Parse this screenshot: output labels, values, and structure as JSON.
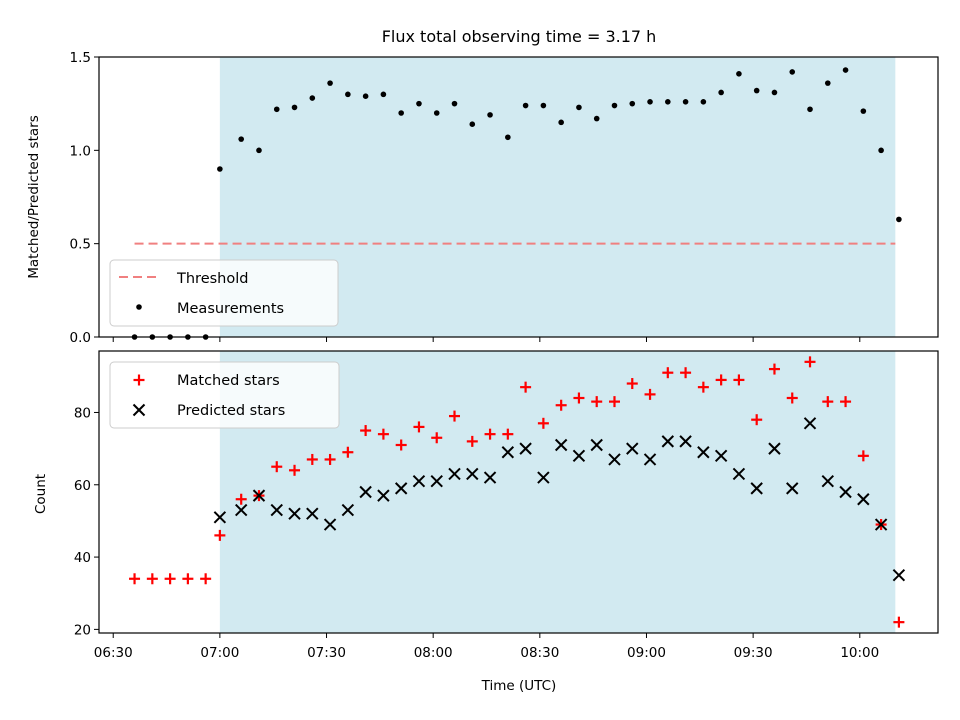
{
  "colors": {
    "background": "#ffffff",
    "shade": "#add8e6",
    "threshold": "#f08080",
    "measurement": "#000000",
    "matched": "#ff0000",
    "predicted": "#000000",
    "axis": "#000000"
  },
  "chart_data": [
    {
      "type": "scatter",
      "title": "Flux total observing time = 3.17 h",
      "xlabel": "",
      "ylabel": "Matched/Predicted stars",
      "xlim": [
        "06:26",
        "10:22"
      ],
      "ylim": [
        0,
        1.5
      ],
      "yticks": [
        0.0,
        0.5,
        1.0,
        1.5
      ],
      "ytick_labels": [
        "0.0",
        "0.5",
        "1.0",
        "1.5"
      ],
      "grid": false,
      "legend_position": "lower-left",
      "shaded_region": [
        "07:00",
        "10:10"
      ],
      "threshold": {
        "name": "Threshold",
        "value": 0.5,
        "x": [
          "06:36",
          "10:10"
        ],
        "style": "dashed"
      },
      "series": [
        {
          "name": "Measurements",
          "x": [
            "06:36",
            "06:41",
            "06:46",
            "06:51",
            "06:56",
            "07:00",
            "07:06",
            "07:11",
            "07:16",
            "07:21",
            "07:26",
            "07:31",
            "07:36",
            "07:41",
            "07:46",
            "07:51",
            "07:56",
            "08:01",
            "08:06",
            "08:11",
            "08:16",
            "08:21",
            "08:26",
            "08:31",
            "08:36",
            "08:41",
            "08:46",
            "08:51",
            "08:56",
            "09:01",
            "09:06",
            "09:11",
            "09:16",
            "09:21",
            "09:26",
            "09:31",
            "09:36",
            "09:41",
            "09:46",
            "09:51",
            "09:56",
            "10:01",
            "10:06",
            "10:11"
          ],
          "y": [
            0,
            0,
            0,
            0,
            0,
            0.9,
            1.06,
            1.0,
            1.22,
            1.23,
            1.28,
            1.36,
            1.3,
            1.29,
            1.3,
            1.2,
            1.25,
            1.2,
            1.25,
            1.14,
            1.19,
            1.07,
            1.24,
            1.24,
            1.15,
            1.23,
            1.17,
            1.24,
            1.25,
            1.26,
            1.26,
            1.26,
            1.26,
            1.31,
            1.41,
            1.32,
            1.31,
            1.42,
            1.22,
            1.36,
            1.43,
            1.21,
            1.0,
            0.63
          ]
        }
      ]
    },
    {
      "type": "scatter",
      "title": "",
      "xlabel": "Time (UTC)",
      "ylabel": "Count",
      "xlim": [
        "06:26",
        "10:22"
      ],
      "ylim": [
        19,
        97
      ],
      "xticks": [
        "06:30",
        "07:00",
        "07:30",
        "08:00",
        "08:30",
        "09:00",
        "09:30",
        "10:00"
      ],
      "yticks": [
        20,
        40,
        60,
        80
      ],
      "grid": false,
      "legend_position": "top-left",
      "shaded_region": [
        "07:00",
        "10:10"
      ],
      "series": [
        {
          "name": "Matched stars",
          "marker": "+",
          "x": [
            "06:36",
            "06:41",
            "06:46",
            "06:51",
            "06:56",
            "07:00",
            "07:06",
            "07:11",
            "07:16",
            "07:21",
            "07:26",
            "07:31",
            "07:36",
            "07:41",
            "07:46",
            "07:51",
            "07:56",
            "08:01",
            "08:06",
            "08:11",
            "08:16",
            "08:21",
            "08:26",
            "08:31",
            "08:36",
            "08:41",
            "08:46",
            "08:51",
            "08:56",
            "09:01",
            "09:06",
            "09:11",
            "09:16",
            "09:21",
            "09:26",
            "09:31",
            "09:36",
            "09:41",
            "09:46",
            "09:51",
            "09:56",
            "10:01",
            "10:06",
            "10:11"
          ],
          "y": [
            34,
            34,
            34,
            34,
            34,
            46,
            56,
            57,
            65,
            64,
            67,
            67,
            69,
            75,
            74,
            71,
            76,
            73,
            79,
            72,
            74,
            74,
            87,
            77,
            82,
            84,
            83,
            83,
            88,
            85,
            91,
            91,
            87,
            89,
            89,
            78,
            92,
            84,
            94,
            83,
            83,
            68,
            49,
            22
          ]
        },
        {
          "name": "Predicted stars",
          "marker": "x",
          "x": [
            "07:00",
            "07:06",
            "07:11",
            "07:16",
            "07:21",
            "07:26",
            "07:31",
            "07:36",
            "07:41",
            "07:46",
            "07:51",
            "07:56",
            "08:01",
            "08:06",
            "08:11",
            "08:16",
            "08:21",
            "08:26",
            "08:31",
            "08:36",
            "08:41",
            "08:46",
            "08:51",
            "08:56",
            "09:01",
            "09:06",
            "09:11",
            "09:16",
            "09:21",
            "09:26",
            "09:31",
            "09:36",
            "09:41",
            "09:46",
            "09:51",
            "09:56",
            "10:01",
            "10:06",
            "10:11"
          ],
          "y": [
            51,
            53,
            57,
            53,
            52,
            52,
            49,
            53,
            58,
            57,
            59,
            61,
            61,
            63,
            63,
            62,
            69,
            70,
            62,
            71,
            68,
            71,
            67,
            70,
            67,
            72,
            72,
            69,
            68,
            63,
            59,
            70,
            59,
            77,
            61,
            58,
            56,
            49,
            35
          ]
        }
      ]
    }
  ]
}
